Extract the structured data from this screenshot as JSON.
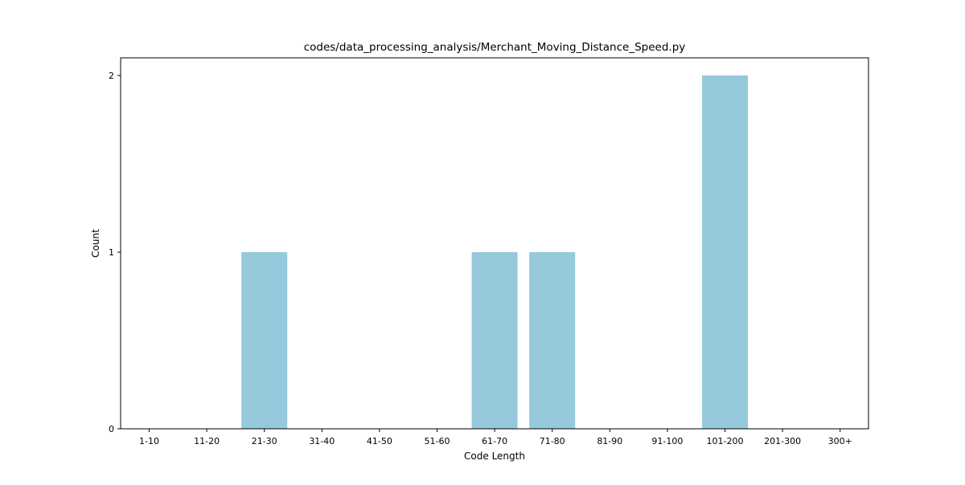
{
  "chart_data": {
    "type": "bar",
    "title": "codes/data_processing_analysis/Merchant_Moving_Distance_Speed.py",
    "xlabel": "Code Length",
    "ylabel": "Count",
    "categories": [
      "1-10",
      "11-20",
      "21-30",
      "31-40",
      "41-50",
      "51-60",
      "61-70",
      "71-80",
      "81-90",
      "91-100",
      "101-200",
      "201-300",
      "300+"
    ],
    "values": [
      0,
      0,
      1,
      0,
      0,
      0,
      1,
      1,
      0,
      0,
      2,
      0,
      0
    ],
    "ylim": [
      0,
      2.1
    ],
    "yticks": [
      0,
      1,
      2
    ],
    "bar_color": "#96c9dc",
    "grid": false,
    "legend": "none"
  }
}
